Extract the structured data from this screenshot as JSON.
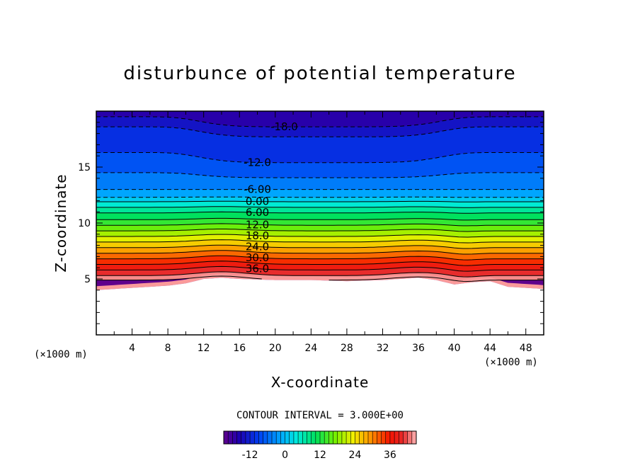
{
  "chart_data": {
    "type": "heatmap",
    "title": "disturbunce of potential temperature",
    "xlabel": "X-coordinate",
    "ylabel": "Z-coordinate",
    "x_unit": "(×1000 m)",
    "z_unit": "(×1000 m)",
    "xlim": [
      0,
      50
    ],
    "ylim": [
      0,
      20
    ],
    "x_ticks": [
      "4",
      "8",
      "12",
      "16",
      "20",
      "24",
      "28",
      "32",
      "36",
      "40",
      "44",
      "48"
    ],
    "y_ticks": [
      "5",
      "10",
      "15"
    ],
    "contour_interval_text": "CONTOUR INTERVAL = 3.000E+00",
    "contour_labels": [
      "-18.0",
      "-12.0",
      "-6.00",
      "0.00",
      "6.00",
      "12.0",
      "18.0",
      "24.0",
      "30.0",
      "36.0"
    ],
    "colorbar_ticks": [
      "-12",
      "0",
      "12",
      "24",
      "36"
    ],
    "value_range": [
      -21,
      45
    ],
    "negative_contours": "dashed",
    "contour_levels": [
      {
        "v": -18,
        "z": 19.5
      },
      {
        "v": -15,
        "z": 18.6
      },
      {
        "v": -12,
        "z": 16.3
      },
      {
        "v": -9,
        "z": 14.5
      },
      {
        "v": -6,
        "z": 13.0
      },
      {
        "v": -3,
        "z": 12.3
      },
      {
        "v": 0,
        "z": 11.9
      },
      {
        "v": 3,
        "z": 11.4
      },
      {
        "v": 6,
        "z": 10.9
      },
      {
        "v": 9,
        "z": 10.3
      },
      {
        "v": 12,
        "z": 9.8
      },
      {
        "v": 15,
        "z": 9.3
      },
      {
        "v": 18,
        "z": 8.8
      },
      {
        "v": 21,
        "z": 8.3
      },
      {
        "v": 24,
        "z": 7.8
      },
      {
        "v": 27,
        "z": 7.3
      },
      {
        "v": 30,
        "z": 6.8
      },
      {
        "v": 33,
        "z": 6.3
      },
      {
        "v": 36,
        "z": 5.8
      },
      {
        "v": 39,
        "z": 5.3
      },
      {
        "v": 42,
        "z": 4.9
      }
    ],
    "terrain_z": [
      {
        "x": 0,
        "z": 4.0
      },
      {
        "x": 4,
        "z": 4.2
      },
      {
        "x": 8,
        "z": 4.4
      },
      {
        "x": 10,
        "z": 4.6
      },
      {
        "x": 12,
        "z": 5.0
      },
      {
        "x": 14,
        "z": 5.1
      },
      {
        "x": 16,
        "z": 5.0
      },
      {
        "x": 20,
        "z": 4.9
      },
      {
        "x": 24,
        "z": 4.9
      },
      {
        "x": 28,
        "z": 4.8
      },
      {
        "x": 32,
        "z": 4.9
      },
      {
        "x": 36,
        "z": 5.1
      },
      {
        "x": 38,
        "z": 4.9
      },
      {
        "x": 40,
        "z": 4.5
      },
      {
        "x": 42,
        "z": 4.7
      },
      {
        "x": 44,
        "z": 4.8
      },
      {
        "x": 46,
        "z": 4.3
      },
      {
        "x": 50,
        "z": 4.1
      }
    ],
    "grid": false,
    "legend": "colorbar-bottom"
  }
}
